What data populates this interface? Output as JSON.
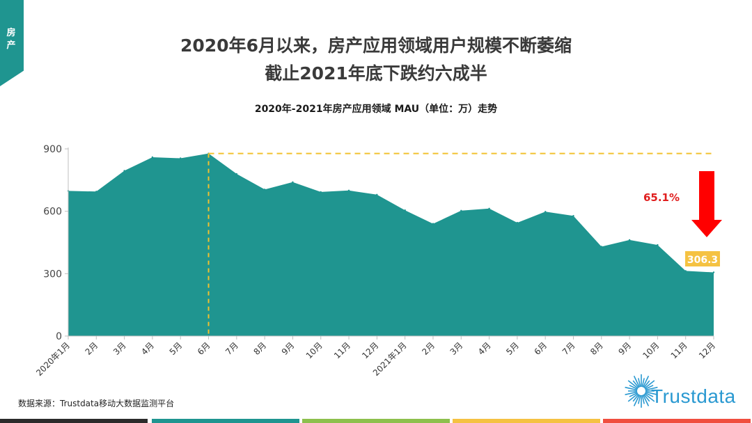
{
  "page": {
    "tab_label": "房产",
    "headline_line1": "2020年6月以来，房产应用领域用户规模不断萎缩",
    "headline_line2": "截止2021年底下跌约六成半",
    "source": "数据来源：Trustdata移动大数据监测平台",
    "logo_text": "Trustdata"
  },
  "colors": {
    "area": "#1f9590",
    "tab": "#1f9590",
    "dashed": "#f2c12e",
    "arrow": "#ff0000",
    "callout_bg": "#f5c242",
    "logo": "#2a99d1",
    "bottom_bar": [
      "#2b2b2b",
      "#1f9590",
      "#8dc04d",
      "#f5c242",
      "#f04e3e"
    ]
  },
  "chart_data": {
    "type": "area",
    "title": "2020年-2021年房产应用领域 MAU（单位：万）走势",
    "categories": [
      "2020年1月",
      "2月",
      "3月",
      "4月",
      "5月",
      "6月",
      "7月",
      "8月",
      "9月",
      "10月",
      "11月",
      "12月",
      "2021年1月",
      "2月",
      "3月",
      "4月",
      "5月",
      "6月",
      "7月",
      "8月",
      "9月",
      "10月",
      "11月",
      "12月"
    ],
    "values": [
      698,
      695,
      795,
      860,
      855,
      878,
      780,
      705,
      740,
      693,
      700,
      680,
      605,
      540,
      603,
      613,
      545,
      598,
      578,
      430,
      462,
      438,
      313,
      306.3
    ],
    "ylim": [
      0,
      900
    ],
    "yticks": [
      0,
      300,
      600,
      900
    ],
    "grid": false,
    "annotations": {
      "peak_category": "6月",
      "decline_label": "65.1%",
      "last_value_label": "306.3"
    }
  }
}
